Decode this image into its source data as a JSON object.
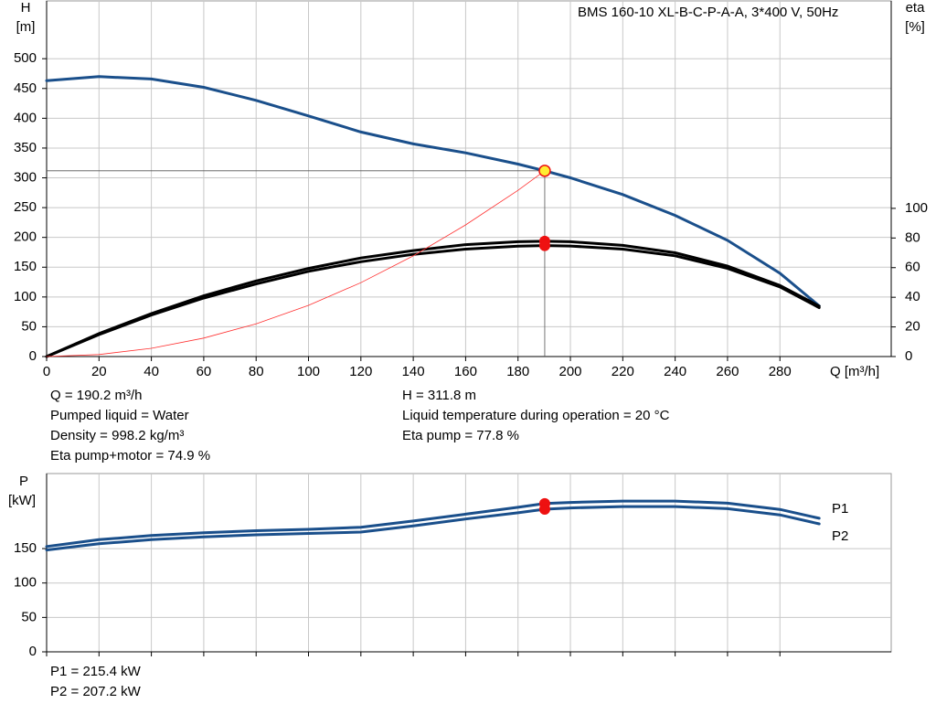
{
  "chart_data": [
    {
      "type": "line",
      "title": "BMS 160-10 XL-B-C-P-A-A, 3*400 V, 50Hz",
      "ylabel": [
        "H",
        "[m]"
      ],
      "y2label": [
        "eta",
        "[%]"
      ],
      "xlabel": "Q [m³/h]",
      "x": [
        0,
        20,
        40,
        60,
        80,
        100,
        120,
        140,
        160,
        180,
        190.2,
        200,
        220,
        240,
        260,
        280,
        295
      ],
      "series": [
        {
          "color": "#1a4f8b",
          "values": [
            463,
            470,
            466,
            452,
            430,
            404,
            377,
            357,
            342,
            323,
            311.8,
            300,
            272,
            237,
            195,
            140,
            85
          ]
        },
        {
          "color": "#000000",
          "axis": "y2",
          "values": [
            0,
            15.5,
            29,
            41,
            51,
            59.5,
            66.5,
            71.5,
            75.5,
            77.5,
            77.8,
            77.5,
            75,
            70,
            61,
            48,
            34
          ]
        },
        {
          "color": "#000000",
          "axis": "y2",
          "values": [
            0,
            14.8,
            28,
            39.5,
            49,
            57.5,
            64,
            69,
            72.5,
            74.5,
            74.9,
            74.6,
            72.5,
            68,
            59.5,
            47,
            33
          ]
        },
        {
          "color": "#ff3030",
          "values": [
            0,
            3.4,
            13.8,
            31,
            55,
            86,
            124,
            169,
            221,
            279,
            311.8,
            null,
            null,
            null,
            null,
            null,
            null
          ]
        }
      ],
      "xlim": [
        0,
        322.5
      ],
      "xticks": [
        0,
        20,
        40,
        60,
        80,
        100,
        120,
        140,
        160,
        180,
        200,
        220,
        240,
        260,
        280
      ],
      "ylim": [
        0,
        597
      ],
      "yticks": [
        0,
        50,
        100,
        150,
        200,
        250,
        300,
        350,
        400,
        450,
        500
      ],
      "y2lim": [
        0,
        240
      ],
      "y2ticks": [
        0,
        20,
        40,
        60,
        80,
        100
      ],
      "grid": true,
      "annotations": [
        [
          "Q = 190.2 m³/h",
          "Pumped liquid = Water",
          "Density = 998.2 kg/m³",
          "Eta pump+motor = 74.9 %"
        ],
        [
          "H = 311.8 m",
          "Liquid temperature during operation = 20 °C",
          "Eta pump = 77.8 %"
        ]
      ]
    },
    {
      "type": "line",
      "ylabel": [
        "P",
        "[kW]"
      ],
      "x": [
        0,
        20,
        40,
        60,
        80,
        100,
        120,
        140,
        160,
        180,
        190.2,
        200,
        220,
        240,
        260,
        280,
        295
      ],
      "series": [
        {
          "name": "P1",
          "color": "#1a4f8b",
          "values": [
            153,
            163,
            169,
            173,
            176,
            178,
            181,
            190,
            200,
            210,
            215.4,
            217,
            219,
            219,
            216,
            207,
            194
          ]
        },
        {
          "name": "P2",
          "color": "#1a4f8b",
          "values": [
            148,
            157,
            163,
            167,
            170,
            172,
            174,
            183,
            193,
            202,
            207.2,
            209,
            211,
            211,
            208,
            199,
            186
          ]
        }
      ],
      "xlim": [
        0,
        322.5
      ],
      "xticks": [
        0,
        20,
        40,
        60,
        80,
        100,
        120,
        140,
        160,
        180,
        200,
        220,
        240,
        260,
        280
      ],
      "ylim": [
        0,
        259
      ],
      "yticks": [
        0,
        50,
        100,
        150
      ],
      "grid": true,
      "annotations": [
        [
          "P1 = 215.4 kW",
          "P2 = 207.2 kW"
        ]
      ]
    }
  ]
}
